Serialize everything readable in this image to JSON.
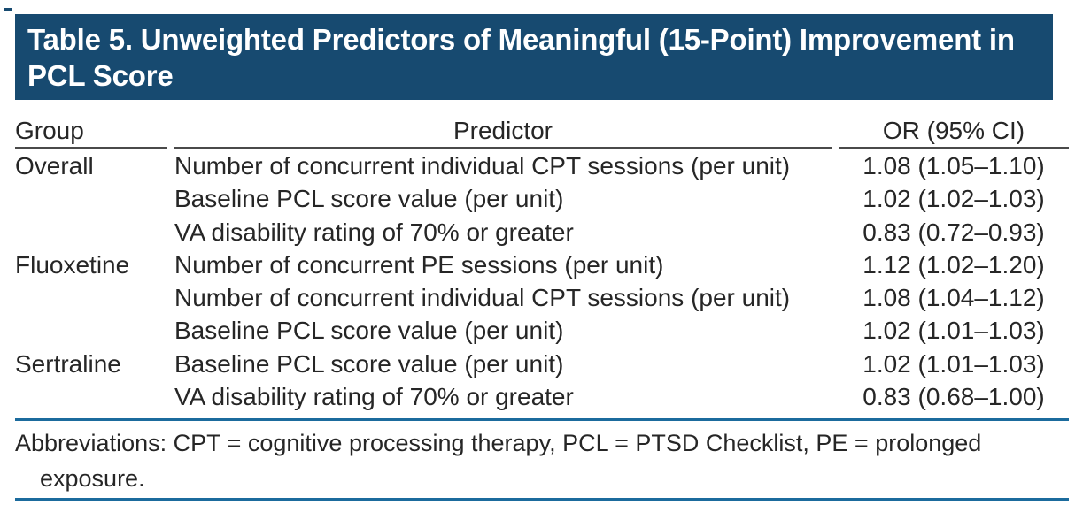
{
  "table": {
    "title": "Table 5. Unweighted Predictors of Meaningful (15-Point) Improvement in PCL Score",
    "columns": {
      "group": "Group",
      "predictor": "Predictor",
      "or_ci": "OR (95% CI)"
    },
    "rows": [
      {
        "group": "Overall",
        "predictor": "Number of concurrent individual CPT sessions (per unit)",
        "or_ci": "1.08 (1.05–1.10)"
      },
      {
        "group": "",
        "predictor": "Baseline PCL score value (per unit)",
        "or_ci": "1.02 (1.02–1.03)"
      },
      {
        "group": "",
        "predictor": "VA disability rating of 70% or greater",
        "or_ci": "0.83 (0.72–0.93)"
      },
      {
        "group": "Fluoxetine",
        "predictor": "Number of concurrent PE sessions (per unit)",
        "or_ci": "1.12 (1.02–1.20)"
      },
      {
        "group": "",
        "predictor": "Number of concurrent individual CPT sessions (per unit)",
        "or_ci": "1.08 (1.04–1.12)"
      },
      {
        "group": "",
        "predictor": "Baseline PCL score value (per unit)",
        "or_ci": "1.02 (1.01–1.03)"
      },
      {
        "group": "Sertraline",
        "predictor": "Baseline PCL score value (per unit)",
        "or_ci": "1.02 (1.01–1.03)"
      },
      {
        "group": "",
        "predictor": "VA disability rating of 70% or greater",
        "or_ci": "0.83 (0.68–1.00)"
      }
    ],
    "footnote": "Abbreviations: CPT = cognitive processing therapy, PCL = PTSD Checklist, PE = prolonged exposure."
  },
  "colors": {
    "banner": "#174A70",
    "title_text": "#FFFFFF",
    "text": "#262626",
    "rule_dark": "#4A4A4A",
    "rule_blue": "#1B6B9D"
  }
}
